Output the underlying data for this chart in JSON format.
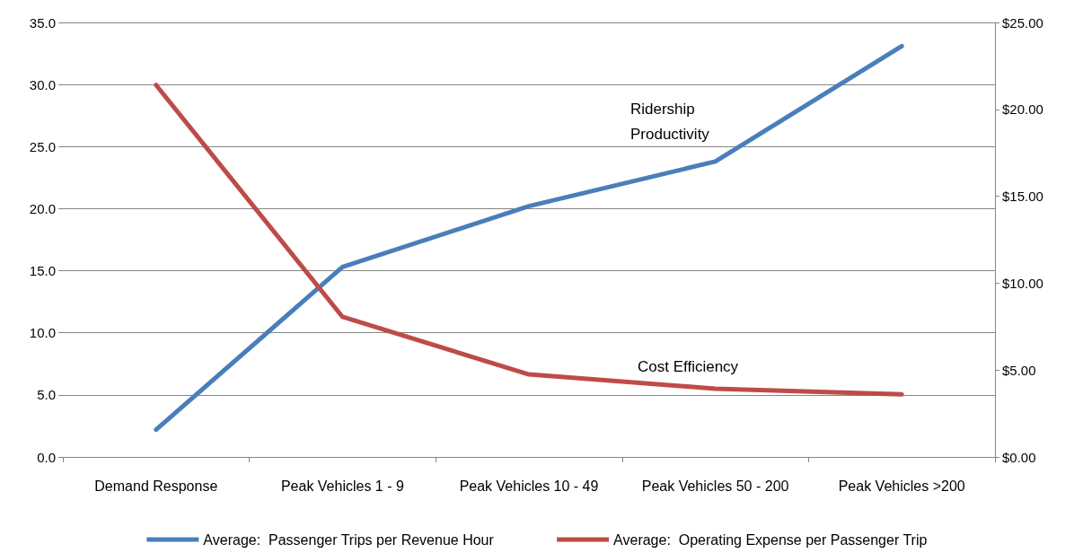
{
  "chart_data": {
    "type": "line",
    "categories": [
      "Demand Response",
      "Peak Vehicles 1 - 9",
      "Peak Vehicles 10 - 49",
      "Peak Vehicles 50 - 200",
      "Peak Vehicles >200"
    ],
    "series": [
      {
        "name": "Average:  Passenger Trips per Revenue Hour",
        "color": "#4a7ebb",
        "values": [
          2.2,
          15.3,
          20.2,
          23.8,
          33.1
        ]
      },
      {
        "name": "Average:  Operating Expense per Passenger Trip",
        "color": "#be4b48",
        "values": [
          21.4,
          8.06,
          4.75,
          3.93,
          3.6
        ],
        "axis": "y2"
      }
    ],
    "ylim": [
      0,
      35
    ],
    "yticks": [
      {
        "value": 0,
        "label": "0.0"
      },
      {
        "value": 5,
        "label": "5.0"
      },
      {
        "value": 10,
        "label": "10.0"
      },
      {
        "value": 15,
        "label": "15.0"
      },
      {
        "value": 20,
        "label": "20.0"
      },
      {
        "value": 25,
        "label": "25.0"
      },
      {
        "value": 30,
        "label": "30.0"
      },
      {
        "value": 35,
        "label": "35.0"
      }
    ],
    "y2lim": [
      0,
      25
    ],
    "y2ticks": [
      {
        "value": 0,
        "label": "$0.00"
      },
      {
        "value": 5,
        "label": "$5.00"
      },
      {
        "value": 10,
        "label": "$10.00"
      },
      {
        "value": 15,
        "label": "$15.00"
      },
      {
        "value": 20,
        "label": "$20.00"
      },
      {
        "value": 25,
        "label": "$25.00"
      }
    ],
    "annotations": [
      "Ridership Productivity",
      "Cost Efficiency"
    ],
    "grid": "y",
    "legend": "bottom",
    "marker": "none",
    "line_style": "solid"
  }
}
